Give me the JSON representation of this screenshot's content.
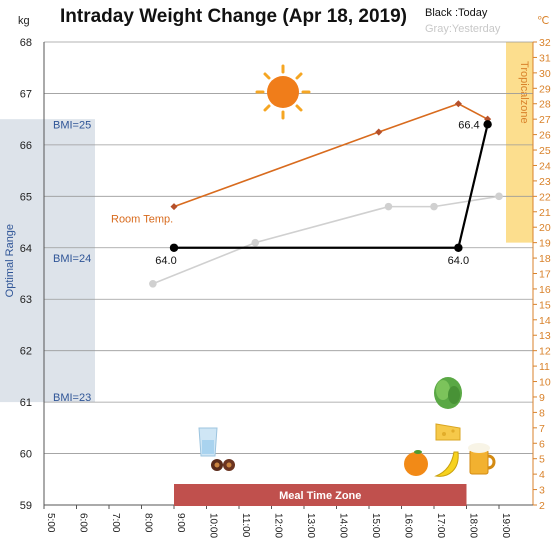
{
  "chart_data": {
    "type": "line",
    "title": "Intraday Weight Change (Apr 18, 2019)",
    "legend": {
      "today": "Black :Today",
      "yesterday": "Gray:Yesterday"
    },
    "ylabel_left": "kg",
    "ylabel_right": "℃",
    "ylim_left": [
      59,
      68
    ],
    "ylim_right": [
      2,
      32
    ],
    "yticks_left": [
      "59",
      "60",
      "61",
      "62",
      "63",
      "64",
      "65",
      "66",
      "67",
      "68"
    ],
    "yticks_right": [
      "2",
      "3",
      "4",
      "5",
      "6",
      "7",
      "8",
      "9",
      "10",
      "11",
      "12",
      "13",
      "14",
      "15",
      "16",
      "17",
      "18",
      "19",
      "20",
      "21",
      "22",
      "23",
      "24",
      "25",
      "26",
      "27",
      "28",
      "29",
      "30",
      "31",
      "32"
    ],
    "xticks": [
      "5:00",
      "6:00",
      "7:00",
      "8:00",
      "9:00",
      "10:00",
      "11:00",
      "12:00",
      "13:00",
      "14:00",
      "15:00",
      "16:00",
      "17:00",
      "18:00",
      "19:00"
    ],
    "xlim_hours": [
      5,
      20
    ],
    "series": [
      {
        "key": "today",
        "color": "#000000",
        "points": [
          [
            9.0,
            64.0
          ],
          [
            17.75,
            64.0
          ],
          [
            18.65,
            66.4
          ]
        ],
        "labels": [
          "64.0",
          "64.0",
          "66.4"
        ]
      },
      {
        "key": "yesterday",
        "color": "#d0d0d0",
        "points": [
          [
            8.35,
            63.3
          ],
          [
            11.5,
            64.1
          ],
          [
            15.6,
            64.8
          ],
          [
            17.0,
            64.8
          ],
          [
            19.0,
            65.0
          ]
        ]
      },
      {
        "key": "room_temp",
        "label": "Room Temp.",
        "color": "#d86b1e",
        "points": [
          [
            9.0,
            64.8
          ],
          [
            15.3,
            66.25
          ],
          [
            17.75,
            66.8
          ],
          [
            18.65,
            66.5
          ]
        ]
      }
    ],
    "bands": {
      "optimal": {
        "label": "Optimal Range",
        "from": 61.0,
        "to": 66.5
      },
      "bmi": [
        {
          "label": "BMI=25",
          "y": 66.4
        },
        {
          "label": "BMI=24",
          "y": 63.8
        },
        {
          "label": "BMI=23",
          "y": 61.1
        }
      ],
      "tropical": {
        "label": "Tropicalzone",
        "temp_from": 19,
        "temp_to": 32
      },
      "meal": {
        "label": "Meal Time Zone",
        "from_hour": 9.0,
        "to_hour": 18.0
      }
    },
    "icons": [
      "sun-icon",
      "water-glass-icon",
      "chocolate-icon",
      "lettuce-icon",
      "cheese-icon",
      "orange-icon",
      "banana-icon",
      "beer-icon"
    ],
    "grid": true
  }
}
